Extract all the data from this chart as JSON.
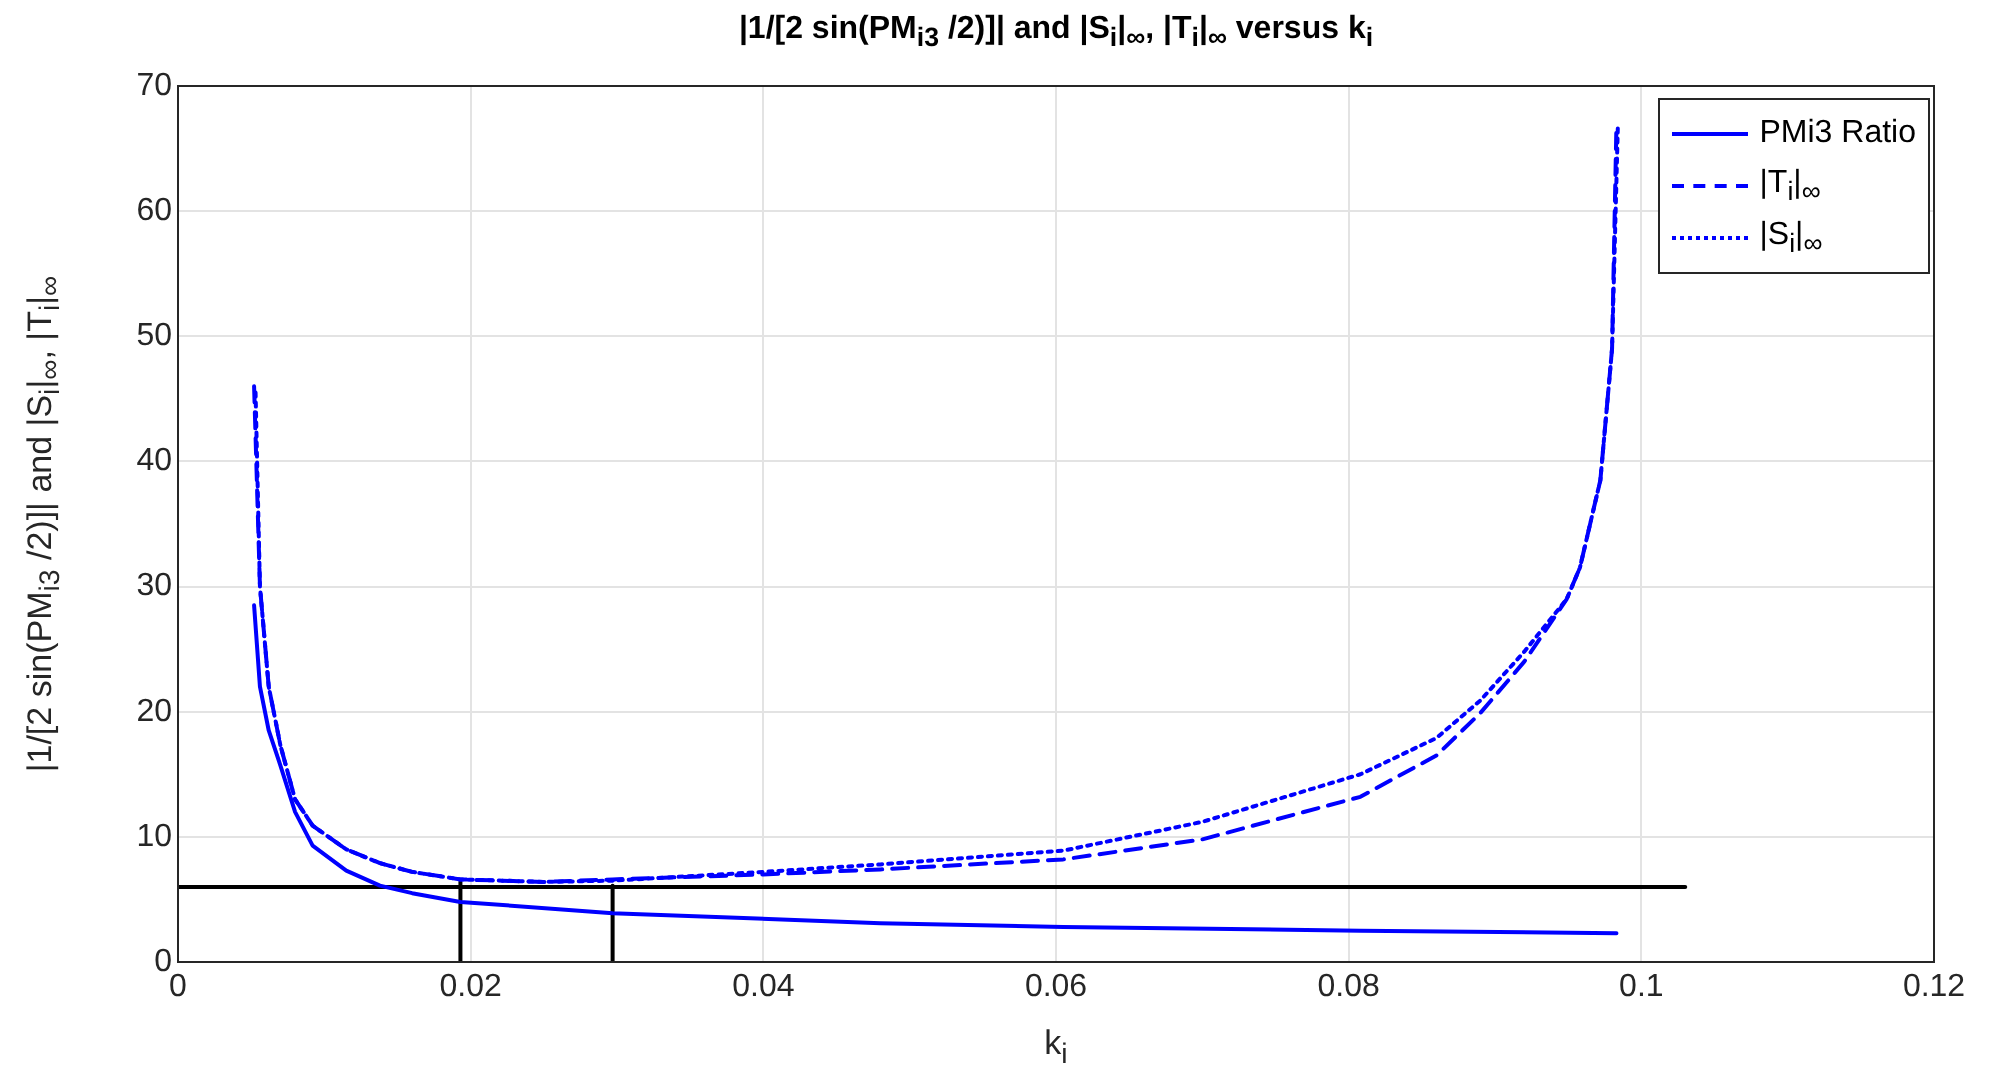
{
  "chart_data": {
    "type": "line",
    "title": "|1/[2 sin(PM$_{i}$$_{3}$ /2)]| and |S$_{i}$|$_{∞}$, |T$_{i}$|$_{∞}$ versus k$_{i}$",
    "xlabel": "k$_{i}$",
    "ylabel": "|1/[2 sin(PM$_{i}$$_{3}$ /2)]| and |S$_{i}$|$_{∞}$, |T$_{i}$|$_{∞}$",
    "xlim": [
      0,
      0.12
    ],
    "xticks": [
      0,
      0.02,
      0.04,
      0.06,
      0.08,
      0.1,
      0.12
    ],
    "ylim": [
      0,
      70
    ],
    "yticks": [
      0,
      10,
      20,
      30,
      40,
      50,
      60,
      70
    ],
    "grid": true,
    "legend": "top right",
    "series": [
      {
        "name": "PMi3 Ratio",
        "color": "#0000ff",
        "line_style": "solid",
        "x": [
          0.0052,
          0.0056,
          0.0062,
          0.007,
          0.008,
          0.0092,
          0.0115,
          0.0138,
          0.016,
          0.0193,
          0.0297,
          0.048,
          0.0605,
          0.0808,
          0.0983
        ],
        "values": [
          28.5,
          22,
          18.5,
          15.7,
          12,
          9.3,
          7.3,
          6.1,
          5.5,
          4.8,
          3.9,
          3.1,
          2.8,
          2.5,
          2.3
        ]
      },
      {
        "name": "|T$_{i}$|$_{∞}$",
        "color": "#0000ff",
        "line_style": "dashed",
        "x": [
          0.0052,
          0.0056,
          0.0062,
          0.007,
          0.008,
          0.0092,
          0.0115,
          0.0138,
          0.016,
          0.0193,
          0.025,
          0.0297,
          0.04,
          0.048,
          0.0605,
          0.07,
          0.0808,
          0.086,
          0.089,
          0.092,
          0.0949,
          0.0958,
          0.0972,
          0.098,
          0.0983
        ],
        "values": [
          46,
          30,
          22,
          17.3,
          13,
          10.9,
          9,
          7.9,
          7.2,
          6.6,
          6.4,
          6.6,
          7,
          7.4,
          8.2,
          9.8,
          13.2,
          16.5,
          19.9,
          24,
          29,
          31.5,
          38.5,
          49,
          67
        ]
      },
      {
        "name": "|S$_{i}$|$_{∞}$",
        "color": "#0000ff",
        "line_style": "dotted",
        "x": [
          0.0053,
          0.0056,
          0.0062,
          0.007,
          0.008,
          0.0092,
          0.0115,
          0.0138,
          0.016,
          0.0193,
          0.025,
          0.0297,
          0.04,
          0.048,
          0.0605,
          0.07,
          0.0808,
          0.086,
          0.089,
          0.092,
          0.0949,
          0.0958,
          0.0972,
          0.098,
          0.0984
        ],
        "values": [
          45.5,
          30,
          22,
          17.3,
          13,
          10.9,
          9,
          7.9,
          7.2,
          6.6,
          6.4,
          6.5,
          7.2,
          7.8,
          8.9,
          11.2,
          15,
          17.9,
          20.9,
          24.8,
          29,
          31.5,
          38.5,
          49,
          67
        ]
      },
      {
        "color": "#000000",
        "line_style": "solid",
        "x": [
          0,
          0.103
        ],
        "values": [
          6,
          6
        ]
      },
      {
        "color": "#000000",
        "line_style": "solid",
        "x": [
          0.0193,
          0.0193
        ],
        "values": [
          0,
          6.4
        ]
      },
      {
        "color": "#000000",
        "line_style": "solid",
        "x": [
          0.0297,
          0.0297
        ],
        "values": [
          0,
          6.1
        ]
      }
    ]
  }
}
